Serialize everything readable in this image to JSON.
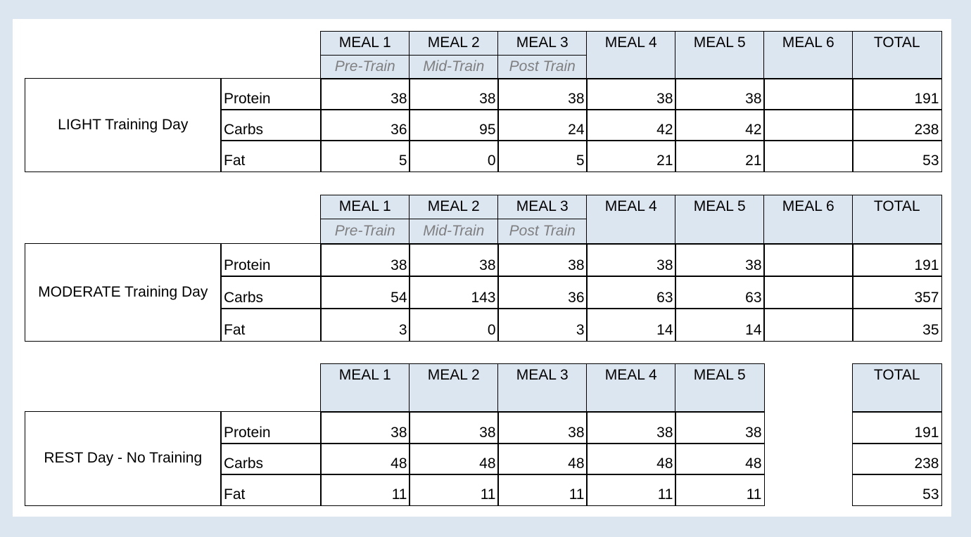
{
  "blocks": [
    {
      "label": "LIGHT Training Day",
      "headers": [
        "MEAL 1",
        "MEAL 2",
        "MEAL 3",
        "MEAL 4",
        "MEAL 5",
        "MEAL 6",
        "TOTAL"
      ],
      "subheaders": [
        "Pre-Train",
        "Mid-Train",
        "Post Train"
      ],
      "rows": [
        {
          "name": "Protein",
          "values": [
            38,
            38,
            38,
            38,
            38,
            null,
            191
          ]
        },
        {
          "name": "Carbs",
          "values": [
            36,
            95,
            24,
            42,
            42,
            null,
            238
          ]
        },
        {
          "name": "Fat",
          "values": [
            5,
            0,
            5,
            21,
            21,
            null,
            53
          ]
        }
      ]
    },
    {
      "label": "MODERATE Training Day",
      "headers": [
        "MEAL 1",
        "MEAL 2",
        "MEAL 3",
        "MEAL 4",
        "MEAL 5",
        "MEAL 6",
        "TOTAL"
      ],
      "subheaders": [
        "Pre-Train",
        "Mid-Train",
        "Post Train"
      ],
      "rows": [
        {
          "name": "Protein",
          "values": [
            38,
            38,
            38,
            38,
            38,
            null,
            191
          ]
        },
        {
          "name": "Carbs",
          "values": [
            54,
            143,
            36,
            63,
            63,
            null,
            357
          ]
        },
        {
          "name": "Fat",
          "values": [
            3,
            0,
            3,
            14,
            14,
            null,
            35
          ]
        }
      ]
    },
    {
      "label": "REST Day - No Training",
      "headers": [
        "MEAL 1",
        "MEAL 2",
        "MEAL 3",
        "MEAL 4",
        "MEAL 5",
        null,
        "TOTAL"
      ],
      "rows": [
        {
          "name": "Protein",
          "values": [
            38,
            38,
            38,
            38,
            38,
            null,
            191
          ]
        },
        {
          "name": "Carbs",
          "values": [
            48,
            48,
            48,
            48,
            48,
            null,
            238
          ]
        },
        {
          "name": "Fat",
          "values": [
            11,
            11,
            11,
            11,
            11,
            null,
            53
          ]
        }
      ]
    }
  ]
}
